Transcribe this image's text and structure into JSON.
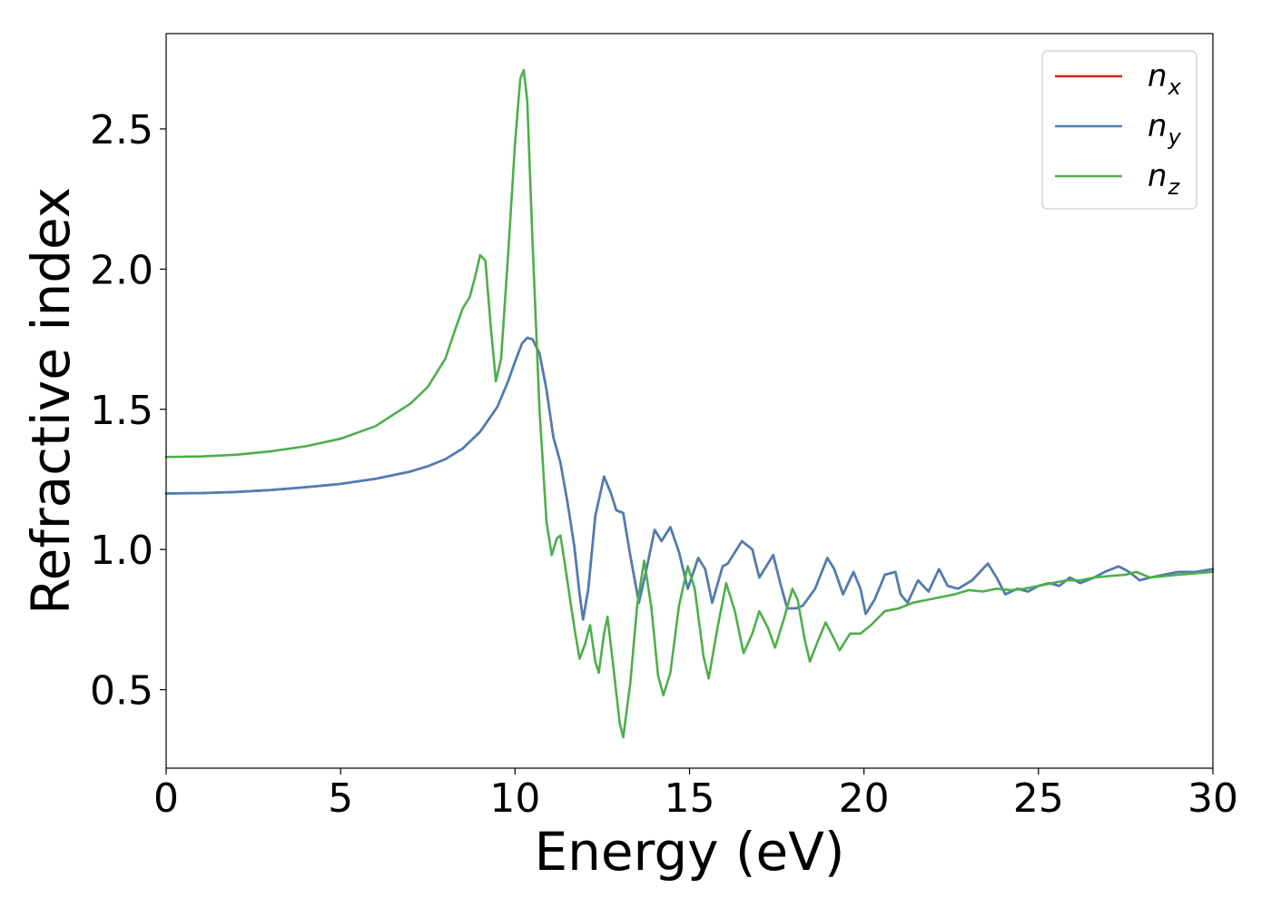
{
  "chart_data": {
    "type": "line",
    "xlabel": "Energy (eV)",
    "ylabel": "Refractive index",
    "xlim": [
      0,
      30
    ],
    "ylim": [
      0.22,
      2.84
    ],
    "xticks": [
      "0",
      "5",
      "10",
      "15",
      "20",
      "25",
      "30"
    ],
    "yticks": [
      "0.5",
      "1.0",
      "1.5",
      "2.0",
      "2.5"
    ],
    "grid": false,
    "legend_position": "top-right",
    "series": [
      {
        "name": "n",
        "subscript": "x",
        "color": "#e41a1c",
        "points": [
          [
            0,
            1.2
          ],
          [
            1,
            1.201
          ],
          [
            2,
            1.205
          ],
          [
            3,
            1.212
          ],
          [
            4,
            1.222
          ],
          [
            5,
            1.234
          ],
          [
            6,
            1.252
          ],
          [
            7,
            1.278
          ],
          [
            7.5,
            1.297
          ],
          [
            8,
            1.322
          ],
          [
            8.5,
            1.36
          ],
          [
            9,
            1.42
          ],
          [
            9.5,
            1.51
          ],
          [
            9.8,
            1.6
          ],
          [
            10,
            1.67
          ],
          [
            10.2,
            1.735
          ],
          [
            10.35,
            1.755
          ],
          [
            10.5,
            1.75
          ],
          [
            10.7,
            1.7
          ],
          [
            10.9,
            1.57
          ],
          [
            11.1,
            1.4
          ],
          [
            11.3,
            1.31
          ],
          [
            11.5,
            1.17
          ],
          [
            11.7,
            1.01
          ],
          [
            11.85,
            0.84
          ],
          [
            11.95,
            0.75
          ],
          [
            12.1,
            0.86
          ],
          [
            12.3,
            1.12
          ],
          [
            12.55,
            1.26
          ],
          [
            12.75,
            1.2
          ],
          [
            12.9,
            1.14
          ],
          [
            13.1,
            1.13
          ],
          [
            13.3,
            0.98
          ],
          [
            13.55,
            0.81
          ],
          [
            13.75,
            0.92
          ],
          [
            14.0,
            1.07
          ],
          [
            14.2,
            1.03
          ],
          [
            14.45,
            1.08
          ],
          [
            14.7,
            0.99
          ],
          [
            14.95,
            0.86
          ],
          [
            15.25,
            0.97
          ],
          [
            15.45,
            0.93
          ],
          [
            15.65,
            0.81
          ],
          [
            15.95,
            0.94
          ],
          [
            16.1,
            0.95
          ],
          [
            16.5,
            1.03
          ],
          [
            16.8,
            1.0
          ],
          [
            17.0,
            0.9
          ],
          [
            17.2,
            0.94
          ],
          [
            17.4,
            0.98
          ],
          [
            17.6,
            0.88
          ],
          [
            17.8,
            0.79
          ],
          [
            18.05,
            0.79
          ],
          [
            18.25,
            0.8
          ],
          [
            18.6,
            0.86
          ],
          [
            18.95,
            0.97
          ],
          [
            19.15,
            0.93
          ],
          [
            19.4,
            0.84
          ],
          [
            19.7,
            0.92
          ],
          [
            19.9,
            0.86
          ],
          [
            20.05,
            0.77
          ],
          [
            20.3,
            0.82
          ],
          [
            20.6,
            0.91
          ],
          [
            20.9,
            0.92
          ],
          [
            21.05,
            0.84
          ],
          [
            21.25,
            0.81
          ],
          [
            21.55,
            0.89
          ],
          [
            21.85,
            0.85
          ],
          [
            22.15,
            0.93
          ],
          [
            22.4,
            0.87
          ],
          [
            22.7,
            0.86
          ],
          [
            23.1,
            0.89
          ],
          [
            23.55,
            0.95
          ],
          [
            23.8,
            0.9
          ],
          [
            24.05,
            0.84
          ],
          [
            24.4,
            0.86
          ],
          [
            24.7,
            0.85
          ],
          [
            25.0,
            0.87
          ],
          [
            25.3,
            0.88
          ],
          [
            25.6,
            0.87
          ],
          [
            25.9,
            0.9
          ],
          [
            26.2,
            0.88
          ],
          [
            26.6,
            0.9
          ],
          [
            26.9,
            0.92
          ],
          [
            27.3,
            0.94
          ],
          [
            27.6,
            0.92
          ],
          [
            27.9,
            0.89
          ],
          [
            28.2,
            0.9
          ],
          [
            28.6,
            0.91
          ],
          [
            29.0,
            0.92
          ],
          [
            29.5,
            0.92
          ],
          [
            30.0,
            0.93
          ]
        ]
      },
      {
        "name": "n",
        "subscript": "y",
        "color": "#4a7fb5",
        "points": [
          [
            0,
            1.2
          ],
          [
            1,
            1.201
          ],
          [
            2,
            1.205
          ],
          [
            3,
            1.212
          ],
          [
            4,
            1.222
          ],
          [
            5,
            1.234
          ],
          [
            6,
            1.252
          ],
          [
            7,
            1.278
          ],
          [
            7.5,
            1.297
          ],
          [
            8,
            1.322
          ],
          [
            8.5,
            1.36
          ],
          [
            9,
            1.42
          ],
          [
            9.5,
            1.51
          ],
          [
            9.8,
            1.6
          ],
          [
            10,
            1.67
          ],
          [
            10.2,
            1.735
          ],
          [
            10.35,
            1.755
          ],
          [
            10.5,
            1.75
          ],
          [
            10.7,
            1.7
          ],
          [
            10.9,
            1.57
          ],
          [
            11.1,
            1.4
          ],
          [
            11.3,
            1.31
          ],
          [
            11.5,
            1.17
          ],
          [
            11.7,
            1.01
          ],
          [
            11.85,
            0.84
          ],
          [
            11.95,
            0.75
          ],
          [
            12.1,
            0.86
          ],
          [
            12.3,
            1.12
          ],
          [
            12.55,
            1.26
          ],
          [
            12.75,
            1.2
          ],
          [
            12.9,
            1.14
          ],
          [
            13.1,
            1.13
          ],
          [
            13.3,
            0.98
          ],
          [
            13.55,
            0.81
          ],
          [
            13.75,
            0.92
          ],
          [
            14.0,
            1.07
          ],
          [
            14.2,
            1.03
          ],
          [
            14.45,
            1.08
          ],
          [
            14.7,
            0.99
          ],
          [
            14.95,
            0.86
          ],
          [
            15.25,
            0.97
          ],
          [
            15.45,
            0.93
          ],
          [
            15.65,
            0.81
          ],
          [
            15.95,
            0.94
          ],
          [
            16.1,
            0.95
          ],
          [
            16.5,
            1.03
          ],
          [
            16.8,
            1.0
          ],
          [
            17.0,
            0.9
          ],
          [
            17.2,
            0.94
          ],
          [
            17.4,
            0.98
          ],
          [
            17.6,
            0.88
          ],
          [
            17.8,
            0.79
          ],
          [
            18.05,
            0.79
          ],
          [
            18.25,
            0.8
          ],
          [
            18.6,
            0.86
          ],
          [
            18.95,
            0.97
          ],
          [
            19.15,
            0.93
          ],
          [
            19.4,
            0.84
          ],
          [
            19.7,
            0.92
          ],
          [
            19.9,
            0.86
          ],
          [
            20.05,
            0.77
          ],
          [
            20.3,
            0.82
          ],
          [
            20.6,
            0.91
          ],
          [
            20.9,
            0.92
          ],
          [
            21.05,
            0.84
          ],
          [
            21.25,
            0.81
          ],
          [
            21.55,
            0.89
          ],
          [
            21.85,
            0.85
          ],
          [
            22.15,
            0.93
          ],
          [
            22.4,
            0.87
          ],
          [
            22.7,
            0.86
          ],
          [
            23.1,
            0.89
          ],
          [
            23.55,
            0.95
          ],
          [
            23.8,
            0.9
          ],
          [
            24.05,
            0.84
          ],
          [
            24.4,
            0.86
          ],
          [
            24.7,
            0.85
          ],
          [
            25.0,
            0.87
          ],
          [
            25.3,
            0.88
          ],
          [
            25.6,
            0.87
          ],
          [
            25.9,
            0.9
          ],
          [
            26.2,
            0.88
          ],
          [
            26.6,
            0.9
          ],
          [
            26.9,
            0.92
          ],
          [
            27.3,
            0.94
          ],
          [
            27.6,
            0.92
          ],
          [
            27.9,
            0.89
          ],
          [
            28.2,
            0.9
          ],
          [
            28.6,
            0.91
          ],
          [
            29.0,
            0.92
          ],
          [
            29.5,
            0.92
          ],
          [
            30.0,
            0.93
          ]
        ]
      },
      {
        "name": "n",
        "subscript": "z",
        "color": "#4daf4a",
        "points": [
          [
            0,
            1.33
          ],
          [
            1,
            1.332
          ],
          [
            2,
            1.338
          ],
          [
            3,
            1.35
          ],
          [
            4,
            1.368
          ],
          [
            5,
            1.395
          ],
          [
            6,
            1.44
          ],
          [
            7,
            1.52
          ],
          [
            7.5,
            1.58
          ],
          [
            8,
            1.68
          ],
          [
            8.3,
            1.79
          ],
          [
            8.5,
            1.86
          ],
          [
            8.7,
            1.9
          ],
          [
            8.85,
            1.97
          ],
          [
            9.0,
            2.05
          ],
          [
            9.15,
            2.03
          ],
          [
            9.3,
            1.8
          ],
          [
            9.45,
            1.6
          ],
          [
            9.6,
            1.68
          ],
          [
            9.8,
            2.05
          ],
          [
            10.0,
            2.45
          ],
          [
            10.15,
            2.68
          ],
          [
            10.25,
            2.71
          ],
          [
            10.35,
            2.6
          ],
          [
            10.5,
            2.1
          ],
          [
            10.7,
            1.5
          ],
          [
            10.9,
            1.1
          ],
          [
            11.05,
            0.98
          ],
          [
            11.2,
            1.04
          ],
          [
            11.3,
            1.05
          ],
          [
            11.45,
            0.93
          ],
          [
            11.7,
            0.72
          ],
          [
            11.85,
            0.61
          ],
          [
            12.0,
            0.66
          ],
          [
            12.15,
            0.73
          ],
          [
            12.3,
            0.6
          ],
          [
            12.4,
            0.56
          ],
          [
            12.55,
            0.7
          ],
          [
            12.65,
            0.76
          ],
          [
            12.8,
            0.6
          ],
          [
            13.0,
            0.38
          ],
          [
            13.1,
            0.33
          ],
          [
            13.3,
            0.52
          ],
          [
            13.5,
            0.8
          ],
          [
            13.7,
            0.96
          ],
          [
            13.9,
            0.8
          ],
          [
            14.1,
            0.55
          ],
          [
            14.25,
            0.48
          ],
          [
            14.45,
            0.56
          ],
          [
            14.7,
            0.8
          ],
          [
            14.95,
            0.94
          ],
          [
            15.15,
            0.86
          ],
          [
            15.4,
            0.62
          ],
          [
            15.55,
            0.54
          ],
          [
            15.8,
            0.72
          ],
          [
            16.05,
            0.88
          ],
          [
            16.3,
            0.78
          ],
          [
            16.55,
            0.63
          ],
          [
            16.8,
            0.7
          ],
          [
            17.0,
            0.78
          ],
          [
            17.25,
            0.72
          ],
          [
            17.45,
            0.65
          ],
          [
            17.7,
            0.75
          ],
          [
            17.95,
            0.86
          ],
          [
            18.1,
            0.82
          ],
          [
            18.3,
            0.68
          ],
          [
            18.45,
            0.6
          ],
          [
            18.7,
            0.68
          ],
          [
            18.9,
            0.74
          ],
          [
            19.15,
            0.68
          ],
          [
            19.3,
            0.64
          ],
          [
            19.6,
            0.7
          ],
          [
            19.9,
            0.7
          ],
          [
            20.2,
            0.73
          ],
          [
            20.6,
            0.78
          ],
          [
            21.0,
            0.79
          ],
          [
            21.4,
            0.81
          ],
          [
            21.8,
            0.82
          ],
          [
            22.2,
            0.83
          ],
          [
            22.6,
            0.84
          ],
          [
            23.0,
            0.855
          ],
          [
            23.4,
            0.85
          ],
          [
            23.8,
            0.86
          ],
          [
            24.2,
            0.855
          ],
          [
            24.6,
            0.86
          ],
          [
            25.0,
            0.87
          ],
          [
            25.4,
            0.88
          ],
          [
            25.8,
            0.89
          ],
          [
            26.2,
            0.89
          ],
          [
            26.6,
            0.9
          ],
          [
            27.0,
            0.905
          ],
          [
            27.5,
            0.91
          ],
          [
            27.8,
            0.92
          ],
          [
            28.2,
            0.9
          ],
          [
            28.6,
            0.905
          ],
          [
            29.0,
            0.91
          ],
          [
            29.5,
            0.915
          ],
          [
            30.0,
            0.92
          ]
        ]
      }
    ]
  }
}
